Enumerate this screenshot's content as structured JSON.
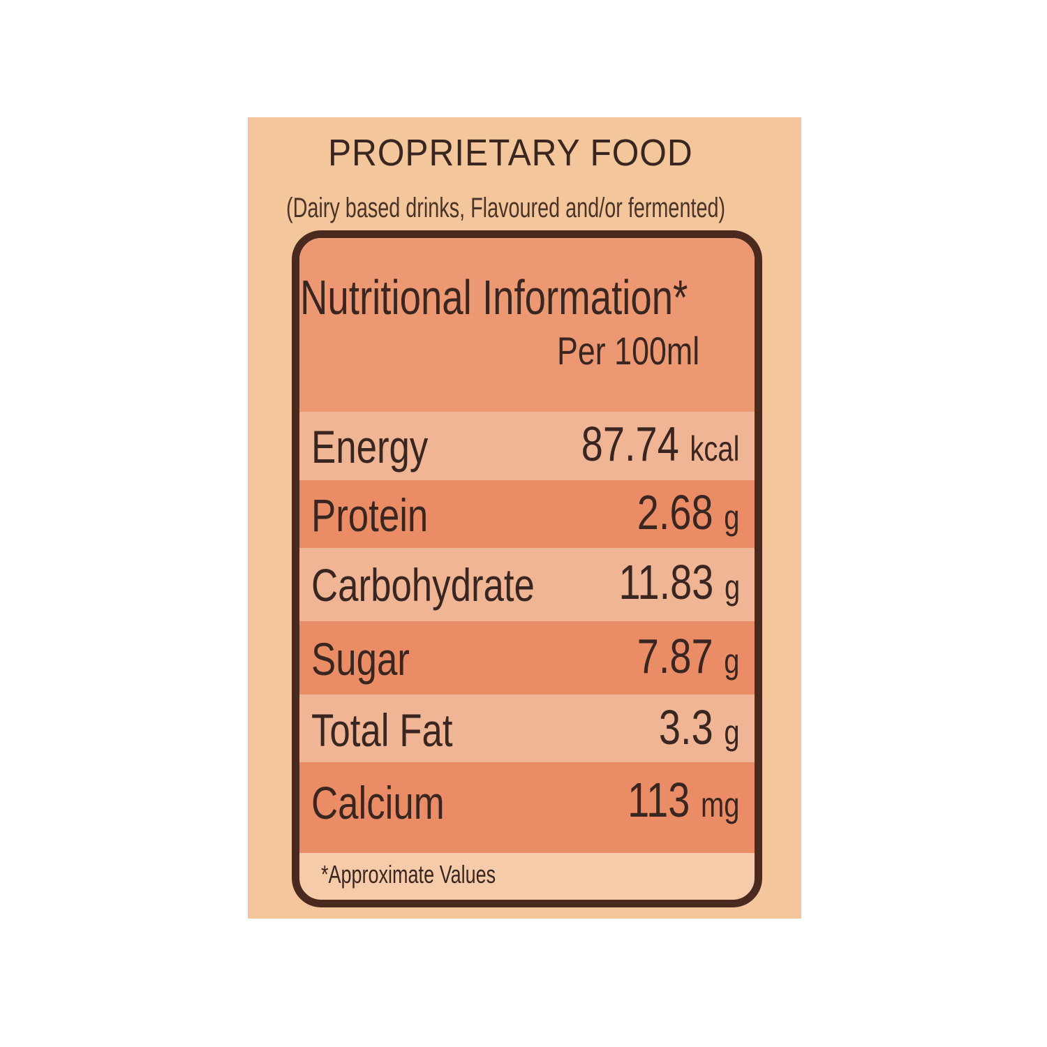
{
  "header": {
    "title": "PROPRIETARY FOOD",
    "subtitle": "(Dairy based drinks, Flavoured and/or fermented)"
  },
  "panel": {
    "heading": "Nutritional Information*",
    "column_header": "Per 100ml",
    "rows": [
      {
        "label": "Energy",
        "value": "87.74",
        "unit": "kcal"
      },
      {
        "label": "Protein",
        "value": "2.68",
        "unit": "g"
      },
      {
        "label": "Carbohydrate",
        "value": "11.83",
        "unit": "g"
      },
      {
        "label": "Sugar",
        "value": "7.87",
        "unit": "g"
      },
      {
        "label": "Total Fat",
        "value": "3.3",
        "unit": "g"
      },
      {
        "label": "Calcium",
        "value": "113",
        "unit": "mg"
      }
    ],
    "footnote": "*Approximate Values"
  },
  "colors": {
    "background": "#f3c69b",
    "border": "#4a2a1e",
    "header_band": "#ec9872",
    "light_row": "#f0b595",
    "dark_row": "#ea8d66",
    "text": "#3a2620"
  }
}
